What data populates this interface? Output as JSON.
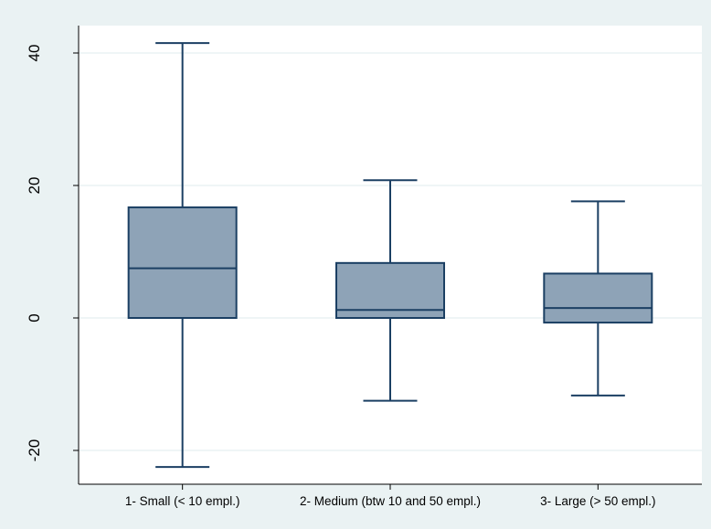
{
  "chart_data": {
    "type": "box",
    "categories": [
      "1- Small (< 10 empl.)",
      "2- Medium (btw 10 and 50 empl.)",
      "3- Large (> 50 empl.)"
    ],
    "boxes": [
      {
        "category": "1- Small (< 10 empl.)",
        "whisker_low": -22.5,
        "q1": 0,
        "median": 7.5,
        "q3": 16.7,
        "whisker_high": 41.5
      },
      {
        "category": "2- Medium (btw 10 and 50 empl.)",
        "whisker_low": -12.5,
        "q1": 0,
        "median": 1.2,
        "q3": 8.3,
        "whisker_high": 20.8
      },
      {
        "category": "3- Large (> 50 empl.)",
        "whisker_low": -11.7,
        "q1": -0.7,
        "median": 1.5,
        "q3": 6.7,
        "whisker_high": 17.6
      }
    ],
    "y_ticks": [
      -20,
      0,
      20,
      40
    ],
    "ylim": [
      -25,
      44
    ],
    "grid": true,
    "legend": false,
    "colors": {
      "box_fill": "#8ea3b7",
      "box_stroke": "#1b3f63",
      "outer_background": "#eaf2f3",
      "plot_background": "#ffffff",
      "grid": "#eaf2f3"
    }
  }
}
